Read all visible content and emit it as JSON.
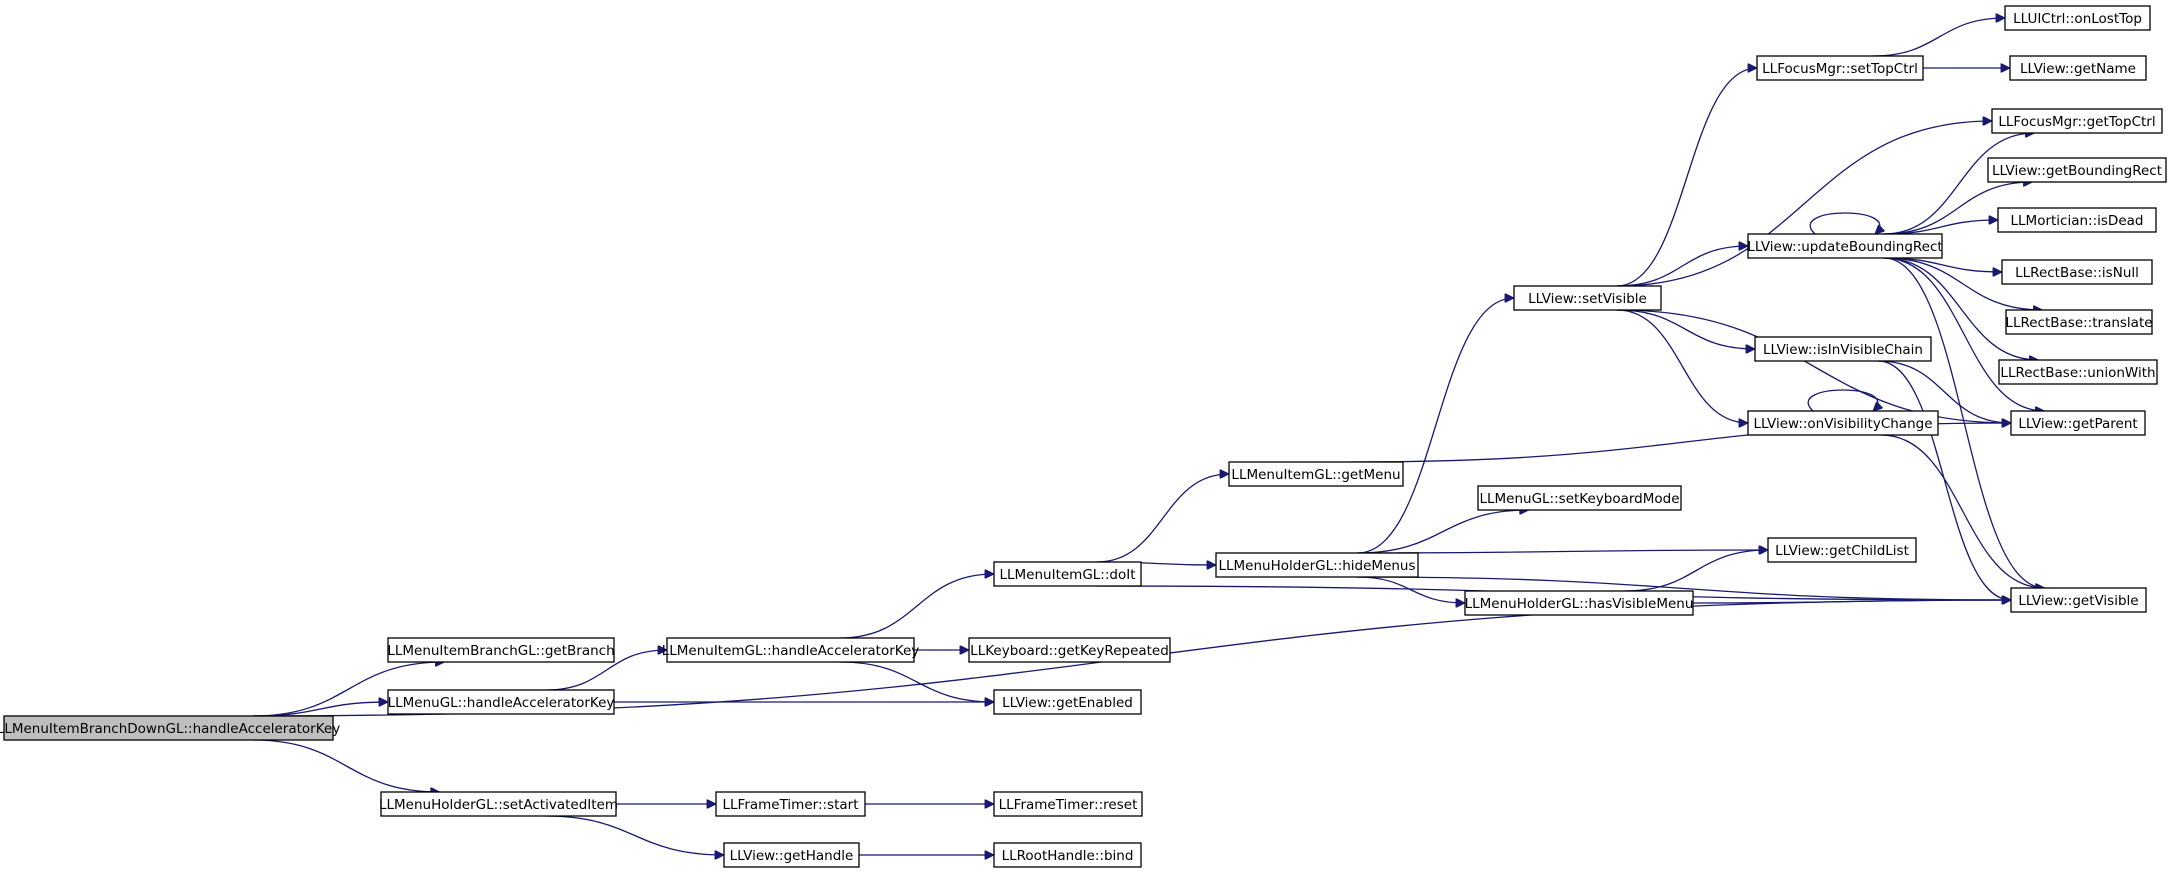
{
  "graph": {
    "nodes": [
      {
        "id": "root",
        "label": "LLMenuItemBranchDownGL::handleAcceleratorKey",
        "root": true
      },
      {
        "id": "branch",
        "label": "LLMenuItemBranchGL::getBranch"
      },
      {
        "id": "menuAccel",
        "label": "LLMenuGL::handleAcceleratorKey"
      },
      {
        "id": "setActivated",
        "label": "LLMenuHolderGL::setActivatedItem"
      },
      {
        "id": "itemAccel",
        "label": "LLMenuItemGL::handleAcceleratorKey"
      },
      {
        "id": "ftStart",
        "label": "LLFrameTimer::start"
      },
      {
        "id": "getHandle",
        "label": "LLView::getHandle"
      },
      {
        "id": "doIt",
        "label": "LLMenuItemGL::doIt"
      },
      {
        "id": "keyRepeated",
        "label": "LLKeyboard::getKeyRepeated"
      },
      {
        "id": "getEnabled",
        "label": "LLView::getEnabled"
      },
      {
        "id": "ftReset",
        "label": "LLFrameTimer::reset"
      },
      {
        "id": "rhBind",
        "label": "LLRootHandle::bind"
      },
      {
        "id": "getMenu",
        "label": "LLMenuItemGL::getMenu"
      },
      {
        "id": "hideMenus",
        "label": "LLMenuHolderGL::hideMenus"
      },
      {
        "id": "setVisible",
        "label": "LLView::setVisible"
      },
      {
        "id": "setKbMode",
        "label": "LLMenuGL::setKeyboardMode"
      },
      {
        "id": "hasVisMenu",
        "label": "LLMenuHolderGL::hasVisibleMenu"
      },
      {
        "id": "setTopCtrl",
        "label": "LLFocusMgr::setTopCtrl"
      },
      {
        "id": "updBounding",
        "label": "LLView::updateBoundingRect"
      },
      {
        "id": "isInVisChain",
        "label": "LLView::isInVisibleChain"
      },
      {
        "id": "onVisChange",
        "label": "LLView::onVisibilityChange"
      },
      {
        "id": "getChildList",
        "label": "LLView::getChildList"
      },
      {
        "id": "onLostTop",
        "label": "LLUICtrl::onLostTop"
      },
      {
        "id": "getName",
        "label": "LLView::getName"
      },
      {
        "id": "getTopCtrl",
        "label": "LLFocusMgr::getTopCtrl"
      },
      {
        "id": "getBoundRect",
        "label": "LLView::getBoundingRect"
      },
      {
        "id": "isDead",
        "label": "LLMortician::isDead"
      },
      {
        "id": "isNull",
        "label": "LLRectBase::isNull"
      },
      {
        "id": "translate",
        "label": "LLRectBase::translate"
      },
      {
        "id": "unionWith",
        "label": "LLRectBase::unionWith"
      },
      {
        "id": "getParent",
        "label": "LLView::getParent"
      },
      {
        "id": "getVisible",
        "label": "LLView::getVisible"
      }
    ],
    "edges": [
      [
        "root",
        "branch"
      ],
      [
        "root",
        "menuAccel"
      ],
      [
        "root",
        "setActivated"
      ],
      [
        "root",
        "getVisible"
      ],
      [
        "menuAccel",
        "itemAccel"
      ],
      [
        "menuAccel",
        "getEnabled"
      ],
      [
        "setActivated",
        "ftStart"
      ],
      [
        "setActivated",
        "getHandle"
      ],
      [
        "ftStart",
        "ftReset"
      ],
      [
        "getHandle",
        "rhBind"
      ],
      [
        "itemAccel",
        "doIt"
      ],
      [
        "itemAccel",
        "keyRepeated"
      ],
      [
        "itemAccel",
        "getEnabled"
      ],
      [
        "doIt",
        "getMenu"
      ],
      [
        "doIt",
        "hideMenus"
      ],
      [
        "doIt",
        "getVisible"
      ],
      [
        "getMenu",
        "getParent"
      ],
      [
        "hideMenus",
        "setVisible"
      ],
      [
        "hideMenus",
        "setKbMode"
      ],
      [
        "hideMenus",
        "getChildList"
      ],
      [
        "hideMenus",
        "hasVisMenu"
      ],
      [
        "hideMenus",
        "getVisible"
      ],
      [
        "hasVisMenu",
        "getChildList"
      ],
      [
        "hasVisMenu",
        "getVisible"
      ],
      [
        "setVisible",
        "setTopCtrl"
      ],
      [
        "setVisible",
        "getTopCtrl"
      ],
      [
        "setVisible",
        "updBounding"
      ],
      [
        "setVisible",
        "getParent"
      ],
      [
        "setVisible",
        "isInVisChain"
      ],
      [
        "setVisible",
        "onVisChange"
      ],
      [
        "setTopCtrl",
        "onLostTop"
      ],
      [
        "setTopCtrl",
        "getName"
      ],
      [
        "updBounding",
        "getTopCtrl"
      ],
      [
        "updBounding",
        "getBoundRect"
      ],
      [
        "updBounding",
        "isDead"
      ],
      [
        "updBounding",
        "isNull"
      ],
      [
        "updBounding",
        "translate"
      ],
      [
        "updBounding",
        "unionWith"
      ],
      [
        "updBounding",
        "getParent"
      ],
      [
        "updBounding",
        "getVisible"
      ],
      [
        "updBounding",
        "updBounding"
      ],
      [
        "isInVisChain",
        "getParent"
      ],
      [
        "isInVisChain",
        "getVisible"
      ],
      [
        "onVisChange",
        "onVisChange"
      ],
      [
        "onVisChange",
        "getVisible"
      ]
    ]
  }
}
